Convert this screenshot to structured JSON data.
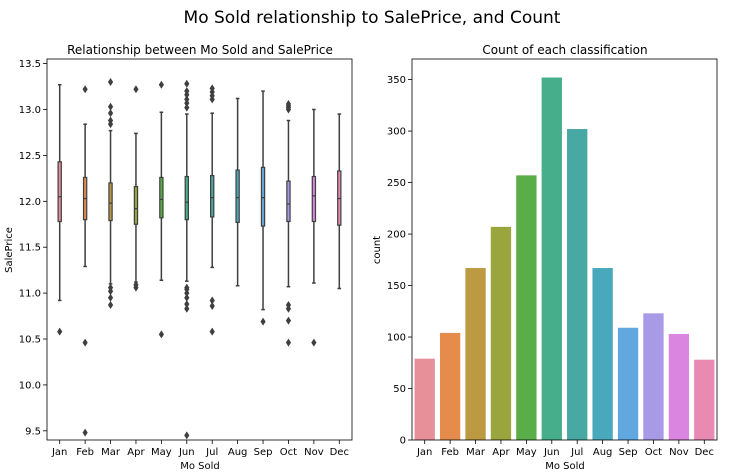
{
  "figure_title": "Mo Sold relationship to SalePrice, and Count",
  "chart_data": [
    {
      "type": "box",
      "title": "Relationship between Mo Sold and SalePrice",
      "xlabel": "Mo Sold",
      "ylabel": "SalePrice",
      "ylim": [
        9.4,
        13.55
      ],
      "yticks": [
        9.5,
        10.0,
        10.5,
        11.0,
        11.5,
        12.0,
        12.5,
        13.0,
        13.5
      ],
      "categories": [
        "Jan",
        "Feb",
        "Mar",
        "Apr",
        "May",
        "Jun",
        "Jul",
        "Aug",
        "Sep",
        "Oct",
        "Nov",
        "Dec"
      ],
      "colors": [
        "#e8909a",
        "#e58b4c",
        "#bb9a42",
        "#9aa63d",
        "#5aae47",
        "#47ae8c",
        "#47a8a4",
        "#4aa8bd",
        "#62a8e0",
        "#a89ae6",
        "#da86e0",
        "#e88ab2"
      ],
      "boxes": [
        {
          "whislo": 10.92,
          "q1": 11.78,
          "med": 12.05,
          "q3": 12.43,
          "whishi": 13.27,
          "fliers": [
            10.58
          ]
        },
        {
          "whislo": 11.29,
          "q1": 11.8,
          "med": 12.03,
          "q3": 12.26,
          "whishi": 12.84,
          "fliers": [
            9.48,
            10.46,
            13.22
          ]
        },
        {
          "whislo": 11.1,
          "q1": 11.79,
          "med": 11.98,
          "q3": 12.2,
          "whishi": 12.77,
          "fliers": [
            10.87,
            10.95,
            11.02,
            11.06,
            12.84,
            12.88,
            12.96,
            13.03,
            13.3
          ]
        },
        {
          "whislo": 11.12,
          "q1": 11.75,
          "med": 11.92,
          "q3": 12.16,
          "whishi": 12.74,
          "fliers": [
            11.06,
            11.09,
            13.22
          ]
        },
        {
          "whislo": 11.14,
          "q1": 11.82,
          "med": 12.02,
          "q3": 12.26,
          "whishi": 12.97,
          "fliers": [
            10.55,
            13.27
          ]
        },
        {
          "whislo": 11.13,
          "q1": 11.8,
          "med": 11.99,
          "q3": 12.27,
          "whishi": 12.95,
          "fliers": [
            9.45,
            10.83,
            10.88,
            10.95,
            11.0,
            11.04,
            11.06,
            13.02,
            13.07,
            13.11,
            13.16,
            13.2,
            13.28
          ]
        },
        {
          "whislo": 11.28,
          "q1": 11.83,
          "med": 12.04,
          "q3": 12.28,
          "whishi": 12.96,
          "fliers": [
            10.58,
            10.86,
            10.92,
            13.11,
            13.15,
            13.19,
            13.23
          ]
        },
        {
          "whislo": 11.08,
          "q1": 11.77,
          "med": 12.04,
          "q3": 12.34,
          "whishi": 13.12,
          "fliers": []
        },
        {
          "whislo": 10.82,
          "q1": 11.73,
          "med": 12.04,
          "q3": 12.37,
          "whishi": 13.2,
          "fliers": [
            10.69
          ]
        },
        {
          "whislo": 11.07,
          "q1": 11.78,
          "med": 11.97,
          "q3": 12.22,
          "whishi": 12.88,
          "fliers": [
            10.46,
            10.7,
            10.83,
            10.87,
            13.0,
            13.02,
            13.04,
            13.06
          ]
        },
        {
          "whislo": 11.11,
          "q1": 11.78,
          "med": 12.06,
          "q3": 12.27,
          "whishi": 13.0,
          "fliers": [
            10.46
          ]
        },
        {
          "whislo": 11.05,
          "q1": 11.74,
          "med": 12.03,
          "q3": 12.33,
          "whishi": 12.95,
          "fliers": []
        }
      ]
    },
    {
      "type": "bar",
      "title": "Count of each classification",
      "xlabel": "Mo Sold",
      "ylabel": "count",
      "ylim": [
        0,
        370
      ],
      "yticks": [
        0,
        50,
        100,
        150,
        200,
        250,
        300,
        350
      ],
      "categories": [
        "Jan",
        "Feb",
        "Mar",
        "Apr",
        "May",
        "Jun",
        "Jul",
        "Aug",
        "Sep",
        "Oct",
        "Nov",
        "Dec"
      ],
      "values": [
        79,
        104,
        167,
        207,
        257,
        352,
        302,
        167,
        109,
        123,
        103,
        78
      ],
      "colors": [
        "#e8909a",
        "#e58b4c",
        "#bb9a42",
        "#9aa63d",
        "#5aae47",
        "#47ae8c",
        "#47a8a4",
        "#4aa8bd",
        "#62a8e0",
        "#a89ae6",
        "#da86e0",
        "#e88ab2"
      ]
    }
  ]
}
